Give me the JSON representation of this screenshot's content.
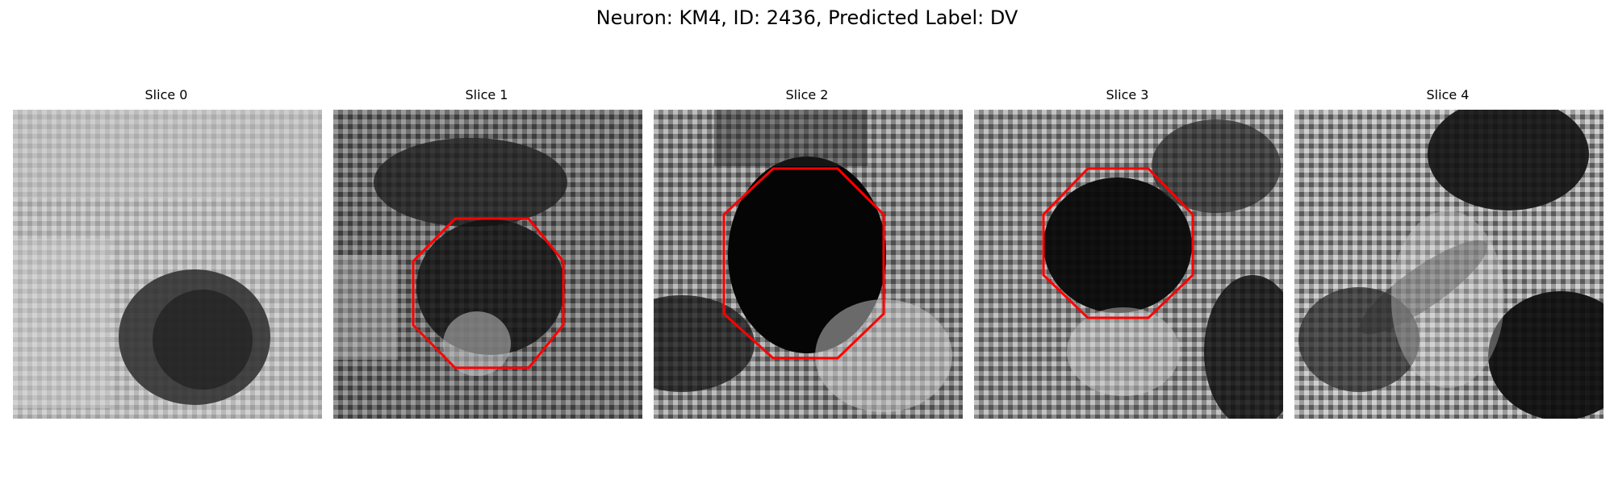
{
  "figure": {
    "title": "Neuron: KM4, ID: 2436, Predicted Label: DV"
  },
  "slices": [
    {
      "title": "Slice 0",
      "description": "Grayscale microscopy slice with a dark soma-like region in the lower center and no red outline.",
      "has_outline": false,
      "outline_color": "#ff0000"
    },
    {
      "title": "Slice 1",
      "description": "Grayscale microscopy slice with a dark region outlined by a red octagon.",
      "has_outline": true,
      "outline_color": "#ff0000"
    },
    {
      "title": "Slice 2",
      "description": "Grayscale microscopy slice with a large dark central region outlined by a red octagon.",
      "has_outline": true,
      "outline_color": "#ff0000"
    },
    {
      "title": "Slice 3",
      "description": "Grayscale microscopy slice with a dark central region outlined by a red octagon.",
      "has_outline": true,
      "outline_color": "#ff0000"
    },
    {
      "title": "Slice 4",
      "description": "Grayscale microscopy slice with dark textured regions near the top center and lower right.",
      "has_outline": false,
      "outline_color": "#ff0000"
    }
  ]
}
